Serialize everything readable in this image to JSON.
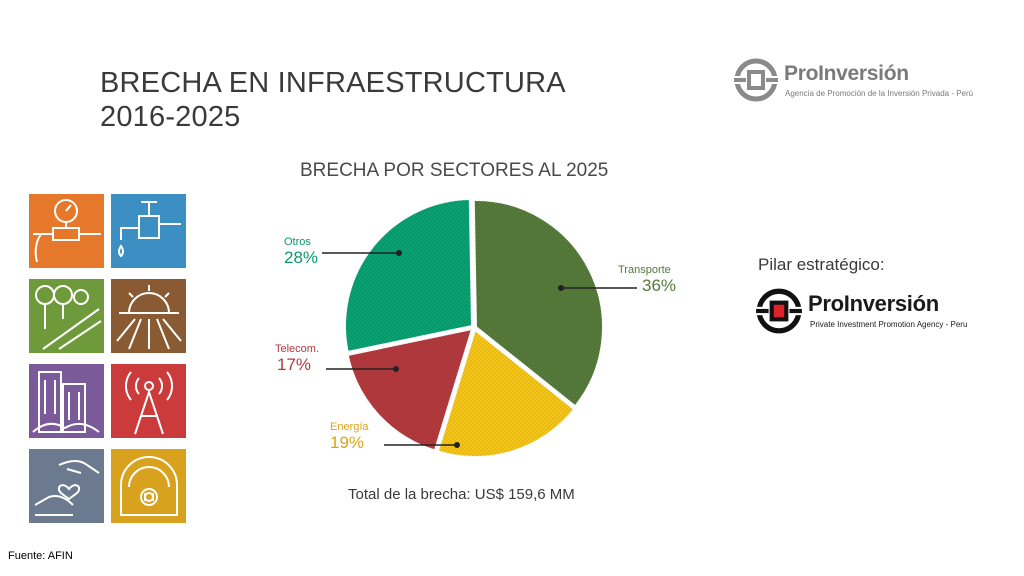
{
  "title_lines": [
    "BRECHA EN INFRAESTRUCTURA",
    "2016-2025"
  ],
  "logo_top": {
    "name": "ProInversión",
    "tagline": "Agencia de Promoción de la Inversión Privada - Perú"
  },
  "logo_bottom": {
    "name": "ProInversión",
    "tagline": "Private Investment Promotion Agency - Peru"
  },
  "pilar_label": "Pilar estratégico:",
  "total_label": "Total de la brecha:  US$ 159,6 MM",
  "source": "Fuente: AFIN",
  "icon_tiles": [
    {
      "name": "water-meter-icon",
      "color": "#e5782a"
    },
    {
      "name": "water-faucet-icon",
      "color": "#3b8fc2"
    },
    {
      "name": "trees-road-icon",
      "color": "#6f9a3b"
    },
    {
      "name": "sunrise-icon",
      "color": "#8a5a32"
    },
    {
      "name": "buildings-icon",
      "color": "#7a5a98"
    },
    {
      "name": "antenna-tower-icon",
      "color": "#cc3b3b"
    },
    {
      "name": "hands-heart-icon",
      "color": "#6c7a90"
    },
    {
      "name": "gauge-dial-icon",
      "color": "#d8a21e"
    }
  ],
  "chart_data": {
    "type": "pie",
    "title": "BRECHA POR SECTORES AL 2025",
    "slices": [
      {
        "name": "Transporte",
        "label": "36%",
        "value": 36,
        "color": "#557a3a",
        "label_color": "#557a3a"
      },
      {
        "name": "Energía",
        "label": "19%",
        "value": 19,
        "color": "#f4c418",
        "label_color": "#d8a418"
      },
      {
        "name": "Telecom.",
        "label": "17%",
        "value": 17,
        "color": "#b23a3e",
        "label_color": "#b23a3e"
      },
      {
        "name": "Otros",
        "label": "28%",
        "value": 28,
        "color": "#0aa070",
        "label_color": "#0a9a68"
      }
    ]
  }
}
